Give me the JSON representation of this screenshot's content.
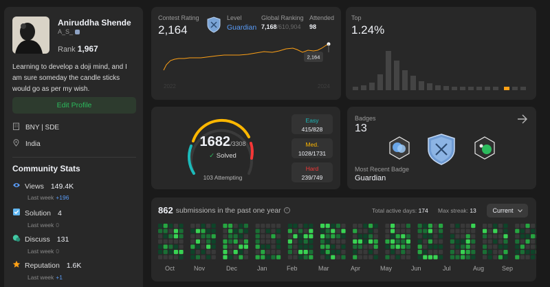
{
  "profile": {
    "name": "Aniruddha Shende",
    "username": "A_S_",
    "rank_label": "Rank",
    "rank_value": "1,967",
    "bio": "Learning to develop a doji mind, and I am sure someday the candle sticks would go as per my wish.",
    "edit_button": "Edit Profile",
    "company": "BNY | SDE",
    "location": "India"
  },
  "community_stats": {
    "title": "Community Stats",
    "items": [
      {
        "label": "Views",
        "value": "149.4K",
        "sub_label": "Last week",
        "sub_value": "+196",
        "icon": "eye-icon",
        "sub_color": "#5a9cf8"
      },
      {
        "label": "Solution",
        "value": "4",
        "sub_label": "Last week",
        "sub_value": "0",
        "icon": "check-square-icon",
        "sub_color": "#6b6b6b"
      },
      {
        "label": "Discuss",
        "value": "131",
        "sub_label": "Last week",
        "sub_value": "0",
        "icon": "chat-bubble-icon",
        "sub_color": "#6b6b6b"
      },
      {
        "label": "Reputation",
        "value": "1.6K",
        "sub_label": "Last week",
        "sub_value": "+1",
        "icon": "star-icon",
        "sub_color": "#5a9cf8"
      }
    ]
  },
  "contest": {
    "rating_label": "Contest Rating",
    "rating_value": "2,164",
    "level_label": "Level",
    "level_value": "Guardian",
    "global_label": "Global Ranking",
    "global_value": "7,168",
    "global_total": "/610,904",
    "attended_label": "Attended",
    "attended_value": "98",
    "tooltip": "2,164",
    "year_start": "2022",
    "year_end": "2024"
  },
  "top": {
    "label": "Top",
    "value": "1.24%"
  },
  "solved": {
    "count": "1682",
    "total": "/3308",
    "solved_label": "Solved",
    "attempting": "103 Attempting",
    "easy_label": "Easy",
    "easy_value": "415/828",
    "med_label": "Med.",
    "med_value": "1028/1731",
    "hard_label": "Hard",
    "hard_value": "239/749",
    "easy_color": "#1cbaba",
    "med_color": "#ffb700",
    "hard_color": "#f63737"
  },
  "badges": {
    "label": "Badges",
    "count": "13",
    "recent_label": "Most Recent Badge",
    "recent_value": "Guardian"
  },
  "submissions": {
    "count": "862",
    "text": "submissions in the past one year",
    "active_label": "Total active days:",
    "active_value": "174",
    "streak_label": "Max streak:",
    "streak_value": "13",
    "dropdown": "Current",
    "months": [
      "Oct",
      "Nov",
      "Dec",
      "Jan",
      "Feb",
      "Mar",
      "Apr",
      "May",
      "Jun",
      "Jul",
      "Aug",
      "Sep"
    ]
  },
  "colors": {
    "accent_green": "#2cbb5d",
    "link_blue": "#5a9cf8",
    "rating_orange": "#ffa116"
  }
}
